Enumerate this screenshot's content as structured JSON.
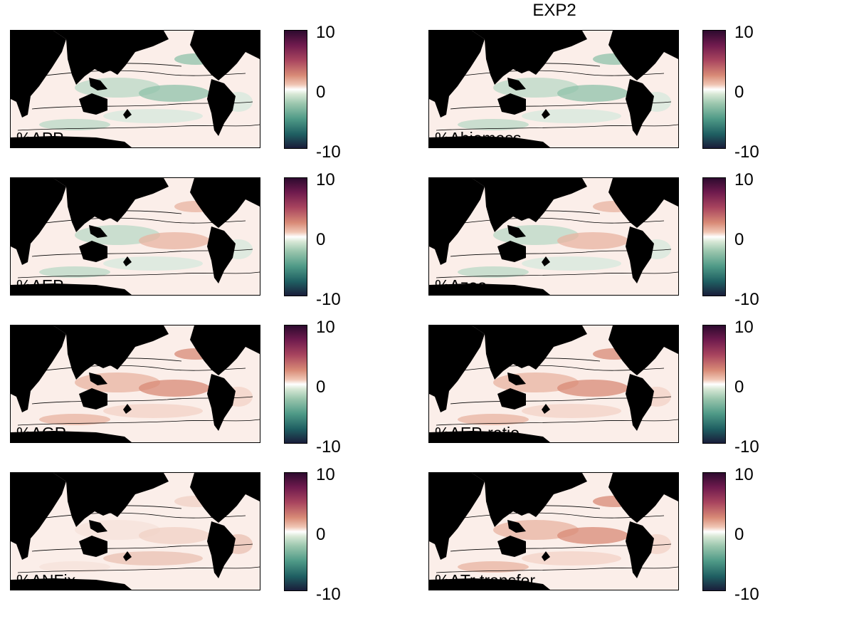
{
  "figure": {
    "title": "EXP2"
  },
  "colorbar": {
    "max_label": "10",
    "mid_label": "0",
    "min_label": "-10",
    "range": [
      -10,
      10
    ]
  },
  "colors": {
    "land": "#000000",
    "positive": "#a8445e",
    "negative": "#1f5f62",
    "neutral": "#ffffff"
  },
  "panels": [
    {
      "label": "%ΔPP",
      "tone": "negative"
    },
    {
      "label": "%Δbiomass",
      "tone": "negative"
    },
    {
      "label": "%ΔEP",
      "tone": "mixed"
    },
    {
      "label": "%Δzoo",
      "tone": "mixed"
    },
    {
      "label": "%ΔGR",
      "tone": "positive"
    },
    {
      "label": "%ΔEP-ratio",
      "tone": "positive"
    },
    {
      "label": "%ΔNFix",
      "tone": "neutral"
    },
    {
      "label": "%ΔTr transfer",
      "tone": "positive"
    }
  ]
}
